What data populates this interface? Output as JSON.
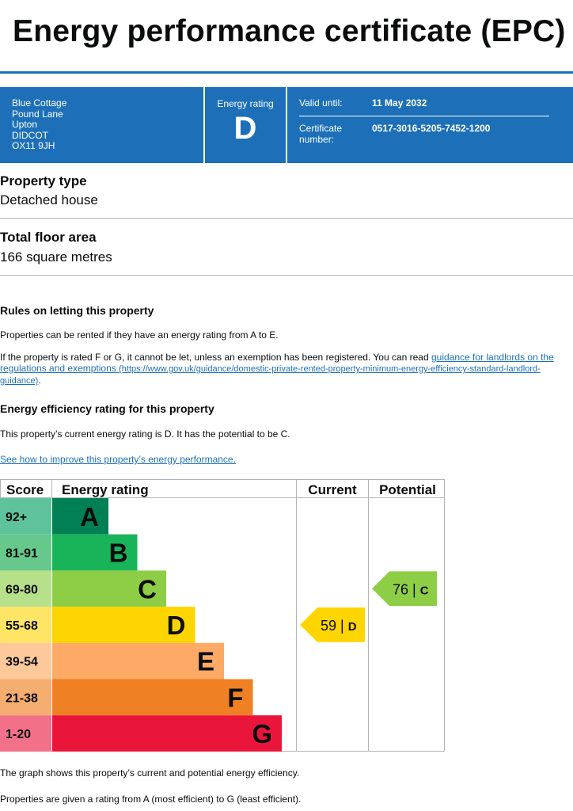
{
  "page_title": "Energy performance certificate (EPC)",
  "banner": {
    "address": [
      "Blue Cottage",
      "Pound Lane",
      "Upton",
      "DIDCOT",
      "OX11 9JH"
    ],
    "energy_rating_label": "Energy rating",
    "energy_rating": "D",
    "valid_until_label": "Valid until:",
    "valid_until": "11 May 2032",
    "certificate_number_label": "Certificate number:",
    "certificate_number": "0517-3016-5205-7452-1200"
  },
  "property_type": {
    "heading": "Property type",
    "value": "Detached house"
  },
  "floor_area": {
    "heading": "Total floor area",
    "value": "166 square metres"
  },
  "letting": {
    "heading": "Rules on letting this property",
    "para1": "Properties can be rented if they have an energy rating from A to E.",
    "para2_prefix": "If the property is rated F or G, it cannot be let, unless an exemption has been registered. You can read ",
    "para2_link": "guidance for landlords on the regulations and exemptions",
    "para2_url": "(https://www.gov.uk/guidance/domestic-private-rented-property-minimum-energy-efficiency-standard-landlord-guidance)",
    "para2_suffix": "."
  },
  "efficiency": {
    "heading": "Energy efficiency rating for this property",
    "para": "This property’s current energy rating is D. It has the potential to be C.",
    "link": "See how to improve this property’s energy performance."
  },
  "chart_data": {
    "type": "table",
    "headers": {
      "score": "Score",
      "rating": "Energy rating",
      "current": "Current",
      "potential": "Potential"
    },
    "bands": [
      {
        "score": "92+",
        "letter": "A",
        "color": "#008054",
        "score_bg": "#5ec39b"
      },
      {
        "score": "81-91",
        "letter": "B",
        "color": "#19b459",
        "score_bg": "#66c98b"
      },
      {
        "score": "69-80",
        "letter": "C",
        "color": "#8dce46",
        "score_bg": "#b6e08a"
      },
      {
        "score": "55-68",
        "letter": "D",
        "color": "#ffd500",
        "score_bg": "#ffe566"
      },
      {
        "score": "39-54",
        "letter": "E",
        "color": "#fcaa65",
        "score_bg": "#fdc99a"
      },
      {
        "score": "21-38",
        "letter": "F",
        "color": "#ef8023",
        "score_bg": "#f5ad70"
      },
      {
        "score": "1-20",
        "letter": "G",
        "color": "#e9153b",
        "score_bg": "#f27088"
      }
    ],
    "current": {
      "value": 59,
      "letter": "D",
      "label": "59 | D"
    },
    "potential": {
      "value": 76,
      "letter": "C",
      "label": "76 | C"
    }
  },
  "footer": {
    "para1": "The graph shows this property’s current and potential energy efficiency.",
    "para2": "Properties are given a rating from A (most efficient) to G (least efficient)."
  }
}
